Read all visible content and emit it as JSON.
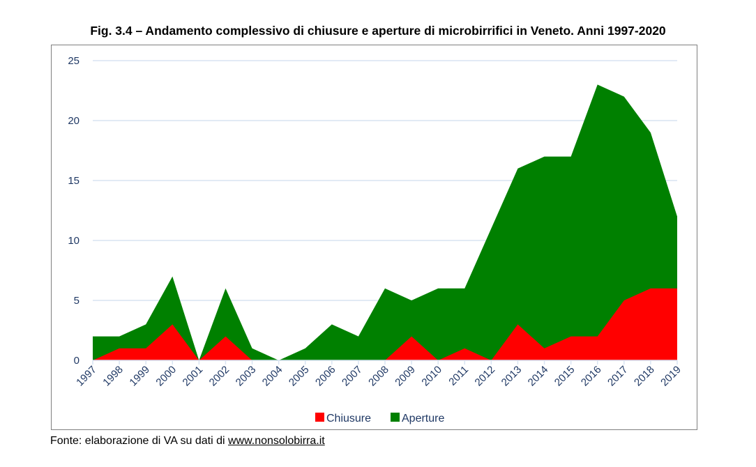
{
  "chart_data": {
    "type": "area",
    "title": "Fig. 3.4 – Andamento complessivo di chiusure e aperture di microbirrifici in Veneto. Anni 1997-2020",
    "xlabel": "",
    "ylabel": "",
    "x": [
      "1997",
      "1998",
      "1999",
      "2000",
      "2001",
      "2002",
      "2003",
      "2004",
      "2005",
      "2006",
      "2007",
      "2008",
      "2009",
      "2010",
      "2011",
      "2012",
      "2013",
      "2014",
      "2015",
      "2016",
      "2017",
      "2018",
      "2019"
    ],
    "ylim": [
      0,
      25
    ],
    "yticks": [
      0,
      5,
      10,
      15,
      20,
      25
    ],
    "grid": true,
    "legend_position": "bottom",
    "series": [
      {
        "name": "Aperture",
        "color": "#008000",
        "values": [
          2,
          2,
          3,
          7,
          0,
          6,
          1,
          0,
          1,
          3,
          2,
          6,
          5,
          6,
          6,
          11,
          16,
          17,
          17,
          23,
          22,
          19,
          12
        ]
      },
      {
        "name": "Chiusure",
        "color": "#ff0000",
        "values": [
          0,
          1,
          1,
          3,
          0,
          2,
          0,
          0,
          0,
          0,
          0,
          0,
          2,
          0,
          1,
          0,
          3,
          1,
          2,
          2,
          5,
          6,
          6
        ]
      }
    ],
    "legend": [
      "Chiusure",
      "Aperture"
    ]
  },
  "source": {
    "prefix": "Fonte: elaborazione di VA su dati di ",
    "link": "www.nonsolobirra.it"
  }
}
